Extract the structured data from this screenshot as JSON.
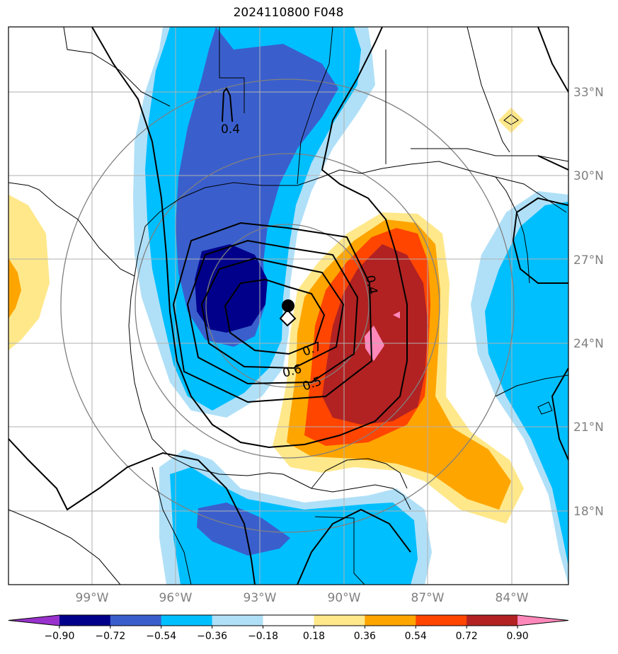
{
  "title": "2024110800 F048",
  "lat_labels": [
    "33°N",
    "30°N",
    "27°N",
    "24°N",
    "21°N",
    "18°N"
  ],
  "lon_labels": [
    "99°W",
    "96°W",
    "93°W",
    "90°W",
    "87°W",
    "84°W"
  ],
  "contour_labels": [
    "0.4",
    "0.4",
    "0.7",
    "0.6",
    "0.5"
  ],
  "colorbar": {
    "ticks": [
      "−0.90",
      "−0.72",
      "−0.54",
      "−0.36",
      "−0.18",
      "0.18",
      "0.36",
      "0.54",
      "0.72",
      "0.90"
    ],
    "colors": [
      "#9932cc",
      "#00008b",
      "#3a5fcd",
      "#00bfff",
      "#b0e0f8",
      "#ffffff",
      "#ffe88a",
      "#ffa500",
      "#ff4500",
      "#b22222",
      "#ff88bb"
    ]
  },
  "colors": {
    "coast": "#000000",
    "grid": "#b0b0b0",
    "range_rings": "#808080",
    "center_marker": "#000000"
  }
}
